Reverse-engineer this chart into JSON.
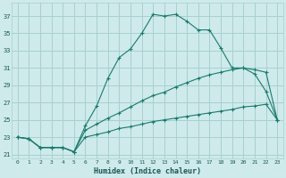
{
  "xlabel": "Humidex (Indice chaleur)",
  "bg_color": "#ceeaea",
  "grid_color": "#a8d0d0",
  "line_color": "#1a7a6e",
  "xlim": [
    -0.5,
    23.5
  ],
  "ylim": [
    20.5,
    38.5
  ],
  "xticks": [
    0,
    1,
    2,
    3,
    4,
    5,
    6,
    7,
    8,
    9,
    10,
    11,
    12,
    13,
    14,
    15,
    16,
    17,
    18,
    19,
    20,
    21,
    22,
    23
  ],
  "yticks": [
    21,
    23,
    25,
    27,
    29,
    31,
    33,
    35,
    37
  ],
  "series1_x": [
    0,
    1,
    2,
    3,
    4,
    5,
    6,
    7,
    8,
    9,
    10,
    11,
    12,
    13,
    14,
    15,
    16,
    17,
    18,
    19,
    20,
    21,
    22,
    23
  ],
  "series1_y": [
    23.0,
    22.8,
    21.8,
    21.8,
    21.8,
    21.3,
    24.3,
    26.6,
    29.8,
    32.2,
    33.2,
    35.0,
    37.2,
    37.0,
    37.2,
    36.4,
    35.4,
    35.4,
    33.3,
    31.0,
    31.0,
    30.3,
    28.3,
    25.0
  ],
  "series2_x": [
    0,
    1,
    2,
    3,
    4,
    5,
    6,
    7,
    8,
    9,
    10,
    11,
    12,
    13,
    14,
    15,
    16,
    17,
    18,
    19,
    20,
    21,
    22,
    23
  ],
  "series2_y": [
    23.0,
    22.8,
    21.8,
    21.8,
    21.8,
    21.3,
    23.8,
    24.5,
    25.2,
    25.8,
    26.5,
    27.2,
    27.8,
    28.2,
    28.8,
    29.3,
    29.8,
    30.2,
    30.5,
    30.8,
    31.0,
    30.8,
    30.5,
    25.0
  ],
  "series3_x": [
    0,
    1,
    2,
    3,
    4,
    5,
    6,
    7,
    8,
    9,
    10,
    11,
    12,
    13,
    14,
    15,
    16,
    17,
    18,
    19,
    20,
    21,
    22,
    23
  ],
  "series3_y": [
    23.0,
    22.8,
    21.8,
    21.8,
    21.8,
    21.3,
    23.0,
    23.3,
    23.6,
    24.0,
    24.2,
    24.5,
    24.8,
    25.0,
    25.2,
    25.4,
    25.6,
    25.8,
    26.0,
    26.2,
    26.5,
    26.6,
    26.8,
    25.0
  ]
}
